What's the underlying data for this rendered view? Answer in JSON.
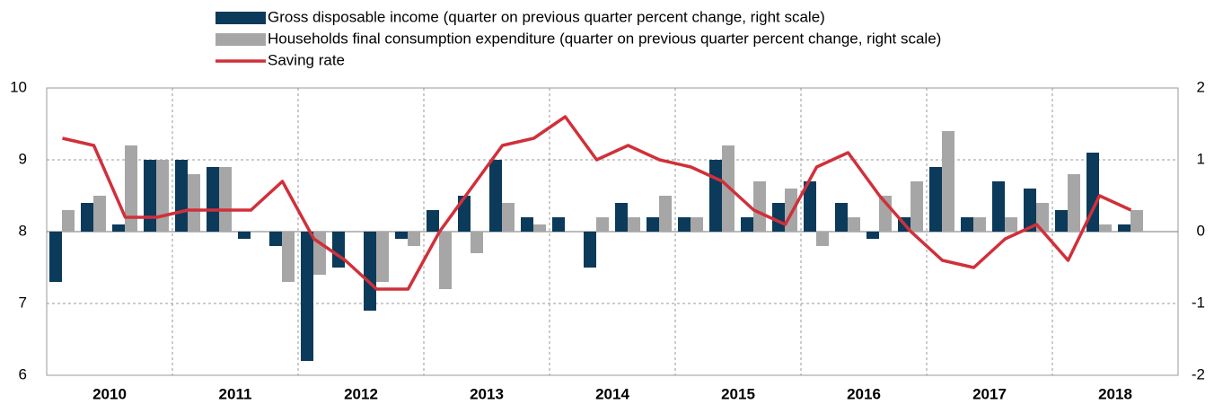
{
  "chart_data": {
    "type": "bar-line",
    "categories": [
      "2010",
      null,
      null,
      null,
      "2011",
      null,
      null,
      null,
      "2012",
      null,
      null,
      null,
      "2013",
      null,
      null,
      null,
      "2014",
      null,
      null,
      null,
      "2015",
      null,
      null,
      null,
      "2016",
      null,
      null,
      null,
      "2017",
      null,
      null,
      null,
      "2018",
      null,
      null,
      null
    ],
    "series": [
      {
        "name": "Gross disposable income (quarter on previous quarter percent change, right scale)",
        "type": "bar",
        "axis": "y2",
        "color": "#0b3a5a",
        "values": [
          -0.7,
          0.4,
          0.1,
          1.0,
          1.0,
          0.9,
          -0.1,
          -0.2,
          -1.8,
          -0.5,
          -1.1,
          -0.1,
          0.3,
          0.5,
          1.0,
          0.2,
          0.2,
          -0.5,
          0.4,
          0.2,
          0.2,
          1.0,
          0.2,
          0.4,
          0.7,
          0.4,
          -0.1,
          0.2,
          0.9,
          0.2,
          0.7,
          0.6,
          0.3,
          1.1,
          0.1,
          null
        ]
      },
      {
        "name": "Households final consumption expenditure (quarter on previous quarter percent change, right scale)",
        "type": "bar",
        "axis": "y2",
        "color": "#a6a6a6",
        "values": [
          0.3,
          0.5,
          1.2,
          1.0,
          0.8,
          0.9,
          null,
          -0.7,
          -0.6,
          null,
          -0.7,
          -0.2,
          -0.8,
          -0.3,
          0.4,
          0.1,
          null,
          0.2,
          0.2,
          0.5,
          0.2,
          1.2,
          0.7,
          0.6,
          -0.2,
          0.2,
          0.5,
          0.7,
          1.4,
          0.2,
          0.2,
          0.4,
          0.8,
          0.1,
          0.3,
          null
        ]
      },
      {
        "name": "Saving rate",
        "type": "line",
        "color": "#d0303a",
        "values": [
          9.3,
          9.2,
          8.2,
          8.2,
          8.3,
          8.3,
          8.3,
          8.7,
          7.9,
          7.6,
          7.2,
          7.2,
          8.0,
          8.6,
          9.2,
          9.3,
          9.6,
          9.0,
          9.2,
          9.0,
          8.9,
          8.7,
          8.3,
          8.1,
          8.9,
          9.1,
          8.5,
          8.0,
          7.6,
          7.5,
          7.9,
          8.1,
          7.6,
          8.5,
          8.3,
          null
        ]
      }
    ],
    "ylim": [
      6,
      10
    ],
    "yticks": [
      6,
      7,
      8,
      9,
      10
    ],
    "y2lim": [
      -2,
      2
    ],
    "y2ticks": [
      -2,
      -1,
      0,
      1,
      2
    ],
    "grid": true
  }
}
